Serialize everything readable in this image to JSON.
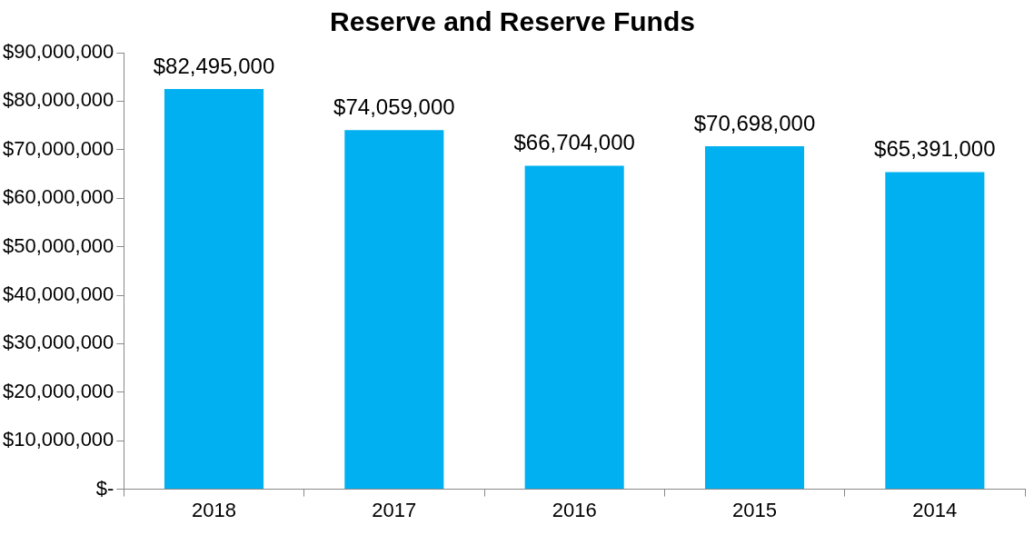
{
  "chart_data": {
    "type": "bar",
    "title": "Reserve and Reserve Funds",
    "categories": [
      "2018",
      "2017",
      "2016",
      "2015",
      "2014"
    ],
    "values": [
      82495000,
      74059000,
      66704000,
      70698000,
      65391000
    ],
    "value_labels": [
      "$82,495,000",
      "$74,059,000",
      "$66,704,000",
      "$70,698,000",
      "$65,391,000"
    ],
    "color": "#00b0f0",
    "ylim": [
      0,
      90000000
    ],
    "yticks": [
      {
        "value": 0,
        "label": "$-"
      },
      {
        "value": 10000000,
        "label": "$10,000,000"
      },
      {
        "value": 20000000,
        "label": "$20,000,000"
      },
      {
        "value": 30000000,
        "label": "$30,000,000"
      },
      {
        "value": 40000000,
        "label": "$40,000,000"
      },
      {
        "value": 50000000,
        "label": "$50,000,000"
      },
      {
        "value": 60000000,
        "label": "$60,000,000"
      },
      {
        "value": 70000000,
        "label": "$70,000,000"
      },
      {
        "value": 80000000,
        "label": "$80,000,000"
      },
      {
        "value": 90000000,
        "label": "$90,000,000"
      }
    ]
  }
}
